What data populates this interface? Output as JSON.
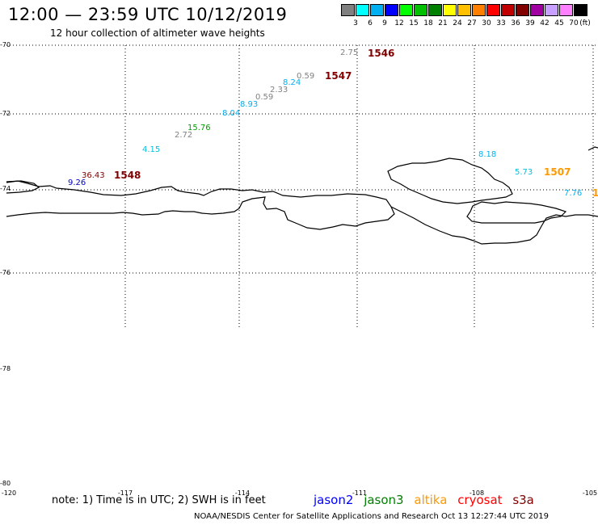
{
  "header": {
    "title": "12:00 — 23:59 UTC 10/12/2019",
    "subtitle": "12 hour collection of altimeter wave heights"
  },
  "colorbar": {
    "colors": [
      "#808080",
      "#00ffff",
      "#00b0f0",
      "#0000ff",
      "#00ff00",
      "#00c000",
      "#008000",
      "#ffff00",
      "#ffc000",
      "#ff8000",
      "#ff0000",
      "#c00000",
      "#800000",
      "#a000a0",
      "#c8a0ff",
      "#ff80ff",
      "#000000"
    ],
    "labels": [
      "3",
      "6",
      "9",
      "12",
      "15",
      "18",
      "21",
      "24",
      "27",
      "30",
      "33",
      "36",
      "39",
      "42",
      "45",
      "70"
    ],
    "unit": "(ft)"
  },
  "axes": {
    "lat_labels": [
      "-70",
      "-72",
      "-74",
      "-76",
      "-78",
      "-80"
    ],
    "lon_labels": [
      "-120",
      "-117",
      "-114",
      "-111",
      "-108",
      "-105"
    ]
  },
  "observations": [
    {
      "text": "2.75",
      "color": "#808080"
    },
    {
      "text": "0.59",
      "color": "#808080"
    },
    {
      "text": "8.24",
      "color": "#00b0f0"
    },
    {
      "text": "2.33",
      "color": "#808080"
    },
    {
      "text": "0.59",
      "color": "#808080"
    },
    {
      "text": "8.93",
      "color": "#00b0f0"
    },
    {
      "text": "8.04",
      "color": "#00b0f0"
    },
    {
      "text": "15.76",
      "color": "#00a000"
    },
    {
      "text": "2.72",
      "color": "#808080"
    },
    {
      "text": "4.15",
      "color": "#00c0e0"
    },
    {
      "text": "36.43",
      "color": "#800000"
    },
    {
      "text": "9.26",
      "color": "#0000c0"
    },
    {
      "text": "8.18",
      "color": "#00b0f0"
    },
    {
      "text": "5.73",
      "color": "#00c0e0"
    },
    {
      "text": "7.76",
      "color": "#00b0f0"
    }
  ],
  "passes": [
    {
      "text": "1546",
      "color": "#800000"
    },
    {
      "text": "1547",
      "color": "#800000"
    },
    {
      "text": "1548",
      "color": "#800000"
    },
    {
      "text": "1507",
      "color": "#ff9900"
    },
    {
      "text": "1",
      "color": "#ff9900"
    }
  ],
  "note": "note: 1) Time is in UTC; 2) SWH is in feet",
  "legend": [
    {
      "text": "jason2",
      "color": "#0000ff"
    },
    {
      "text": "jason3",
      "color": "#008000"
    },
    {
      "text": "altika",
      "color": "#ff9900"
    },
    {
      "text": "cryosat",
      "color": "#ff0000"
    },
    {
      "text": "s3a",
      "color": "#800000"
    }
  ],
  "footer": "NOAA/NESDIS Center for Satellite Applications and Research    Oct 13 12:27:44 UTC 2019"
}
